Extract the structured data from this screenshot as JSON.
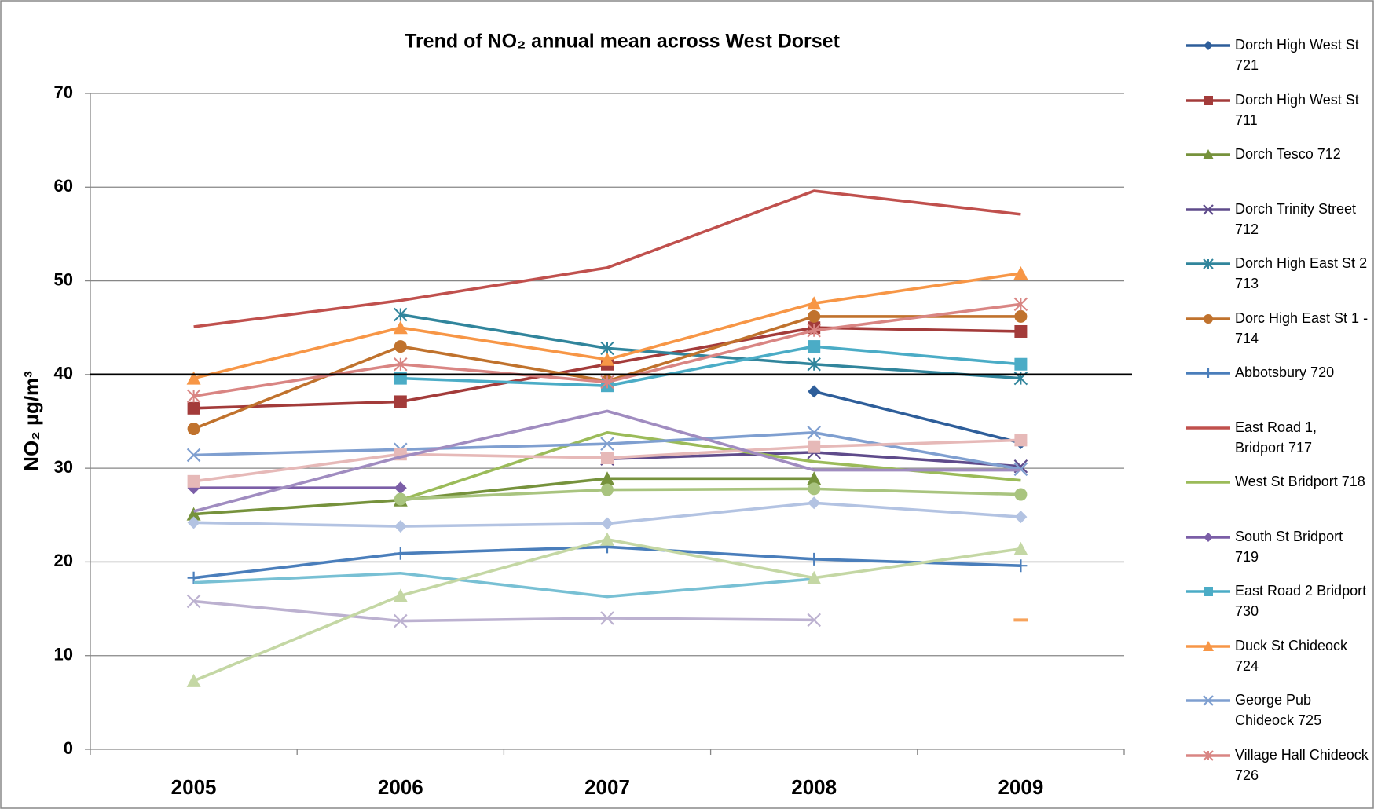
{
  "chart_data": {
    "type": "line",
    "title": "Trend of NO₂ annual mean across West Dorset",
    "y_label": "NO₂ µg/m³",
    "categories": [
      "2005",
      "2006",
      "2007",
      "2008",
      "2009"
    ],
    "ylim": [
      0,
      70
    ],
    "yticks": [
      0,
      10,
      20,
      30,
      40,
      50,
      60,
      70
    ],
    "grid": true,
    "threshold": 40,
    "legend": "right",
    "series": [
      {
        "name": "Dorch High West St 721",
        "color": "#2e5e9a",
        "marker": "diamond",
        "values": [
          null,
          null,
          null,
          38.2,
          32.7
        ]
      },
      {
        "name": "Dorch High West St 711",
        "color": "#a33b3a",
        "marker": "square",
        "values": [
          36.4,
          37.1,
          41.1,
          45.0,
          44.6
        ]
      },
      {
        "name": "Dorch Tesco 712",
        "color": "#76923c",
        "marker": "triangle",
        "values": [
          25.1,
          26.6,
          28.9,
          28.9,
          null
        ]
      },
      {
        "name": "Dorch Trinity Street 712",
        "color": "#5f4b8b",
        "marker": "x",
        "values": [
          null,
          null,
          31.0,
          31.7,
          30.2
        ]
      },
      {
        "name": "Dorch High East St 2 713",
        "color": "#31859c",
        "marker": "asterisk",
        "values": [
          null,
          46.4,
          42.8,
          41.1,
          39.6
        ]
      },
      {
        "name": "Dorc High  East St 1 - 714",
        "color": "#c0722d",
        "marker": "circle",
        "values": [
          34.2,
          43.0,
          39.3,
          46.2,
          46.2
        ]
      },
      {
        "name": "Abbotsbury 720",
        "color": "#4a7ebb",
        "marker": "plus",
        "values": [
          18.3,
          20.9,
          21.6,
          20.3,
          19.6
        ]
      },
      {
        "name": "East Road 1, Bridport 717",
        "color": "#c0504d",
        "marker": "none",
        "values": [
          45.1,
          47.9,
          51.4,
          59.6,
          57.1
        ]
      },
      {
        "name": "West St  Bridport 718",
        "color": "#9bbb59",
        "marker": "none",
        "values": [
          null,
          26.6,
          33.8,
          30.7,
          28.7
        ]
      },
      {
        "name": "South St Bridport 719",
        "color": "#7b5ea7",
        "marker": "diamond",
        "values": [
          27.9,
          27.9,
          null,
          null,
          null
        ]
      },
      {
        "name": "East Road 2 Bridport 730",
        "color": "#4bacc6",
        "marker": "square",
        "values": [
          null,
          39.6,
          38.8,
          43.0,
          41.1
        ]
      },
      {
        "name": "Duck St Chideock 724",
        "color": "#f79646",
        "marker": "triangle",
        "values": [
          39.6,
          45.0,
          41.6,
          47.6,
          50.8
        ]
      },
      {
        "name": "George Pub Chideock 725",
        "color": "#7f9fd0",
        "marker": "x",
        "values": [
          31.4,
          32.0,
          32.6,
          33.8,
          29.9
        ]
      },
      {
        "name": "Village Hall Chideock 726",
        "color": "#d98583",
        "marker": "asterisk",
        "values": [
          37.7,
          41.1,
          39.2,
          44.7,
          47.5
        ]
      },
      {
        "color": "#a9c47f",
        "marker": "circle",
        "values": [
          null,
          26.7,
          27.7,
          27.8,
          27.2
        ]
      },
      {
        "color": "#b3c3e2",
        "marker": "diamond",
        "values": [
          24.2,
          23.8,
          24.1,
          26.3,
          24.8
        ]
      },
      {
        "color": "#78c0d4",
        "marker": "none",
        "values": [
          17.8,
          18.8,
          16.3,
          18.2,
          null
        ]
      },
      {
        "color": "#bcb1d0",
        "marker": "x",
        "values": [
          15.8,
          13.7,
          14.0,
          13.8,
          null
        ]
      },
      {
        "color": "#c4d7a4",
        "marker": "triangle",
        "values": [
          7.3,
          16.4,
          22.4,
          18.3,
          21.4
        ]
      },
      {
        "color": "#e6b9b8",
        "marker": "square",
        "values": [
          28.6,
          31.5,
          31.1,
          32.3,
          33.0
        ]
      },
      {
        "color": "#a08cc0",
        "marker": "none",
        "values": [
          25.4,
          31.2,
          36.1,
          29.8,
          29.8
        ]
      },
      {
        "color": "#f7a35c",
        "marker": "dash",
        "values": [
          null,
          null,
          null,
          null,
          13.8
        ]
      }
    ]
  }
}
